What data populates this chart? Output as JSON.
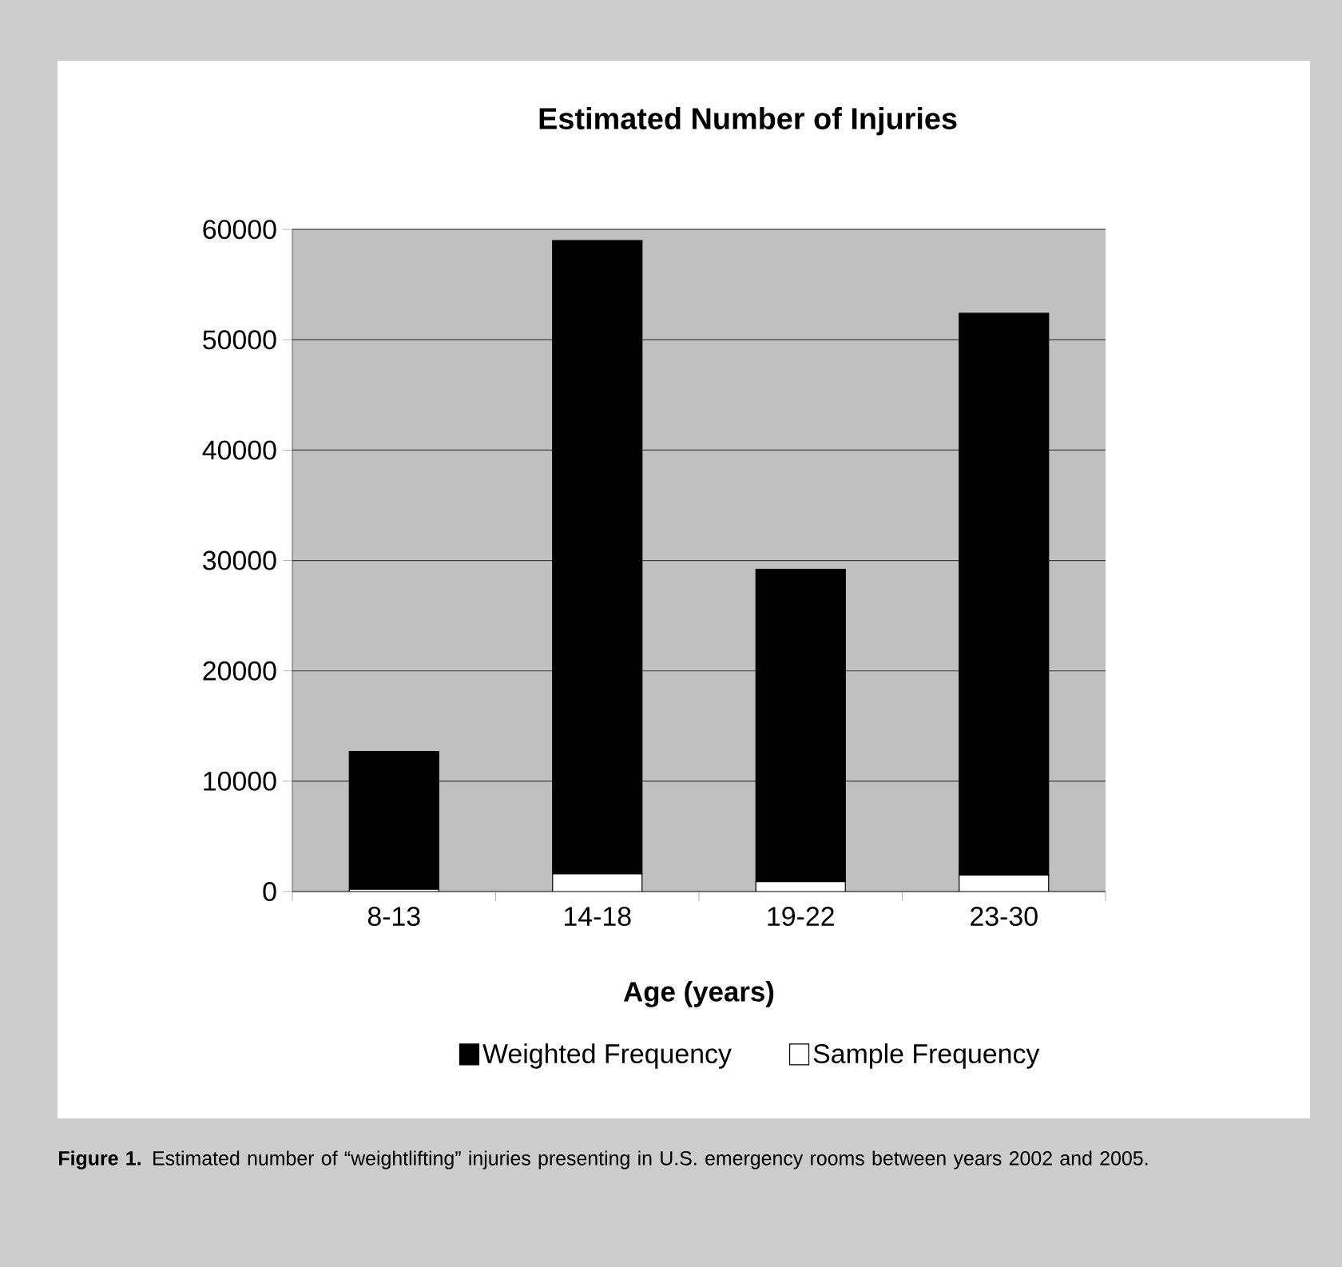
{
  "chart_data": {
    "type": "bar",
    "title": "Estimated Number of Injuries",
    "xlabel": "Age (years)",
    "categories": [
      "8-13",
      "14-18",
      "19-22",
      "23-30"
    ],
    "series": [
      {
        "name": "Sample Frequency",
        "color": "#ffffff",
        "values": [
          200,
          1600,
          900,
          1500
        ]
      },
      {
        "name": "Weighted Frequency",
        "color": "#000000",
        "values": [
          12500,
          57400,
          28300,
          50900
        ]
      }
    ],
    "stacked": true,
    "ylim": [
      0,
      60000
    ],
    "yticks": [
      0,
      10000,
      20000,
      30000,
      40000,
      50000,
      60000
    ],
    "grid": "y",
    "legend": "bottom",
    "annotations": [
      "**Figure 1.** Estimated number of “weightlifting” injuries presenting in U.S. emergency rooms between years 2002 and 2005."
    ]
  }
}
